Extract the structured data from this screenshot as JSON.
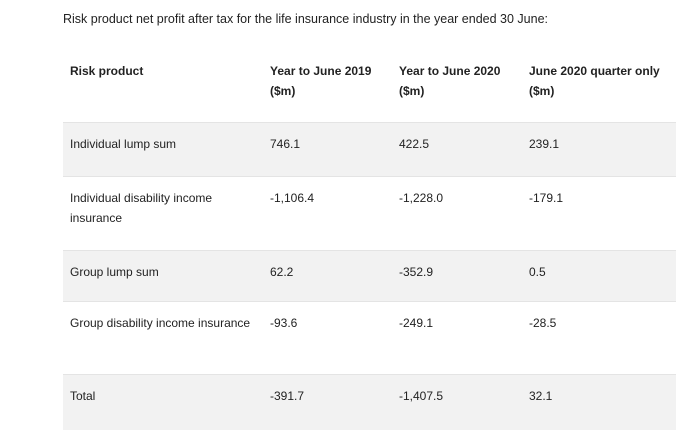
{
  "intro": "Risk product net profit after tax for the life insurance industry in the year ended 30 June:",
  "table": {
    "headers": [
      "Risk product",
      "Year to June 2019 ($m)",
      "Year to June 2020 ($m)",
      "June 2020 quarter only ($m)"
    ],
    "rows": [
      [
        "Individual lump sum",
        "746.1",
        "422.5",
        "239.1"
      ],
      [
        "Individual disability income insurance",
        "-1,106.4",
        "-1,228.0",
        "-179.1"
      ],
      [
        "Group lump sum",
        "62.2",
        "-352.9",
        "0.5"
      ],
      [
        "Group disability income insurance",
        "-93.6",
        "-249.1",
        "-28.5"
      ],
      [
        "Total",
        "-391.7",
        "-1,407.5",
        "32.1"
      ]
    ]
  }
}
